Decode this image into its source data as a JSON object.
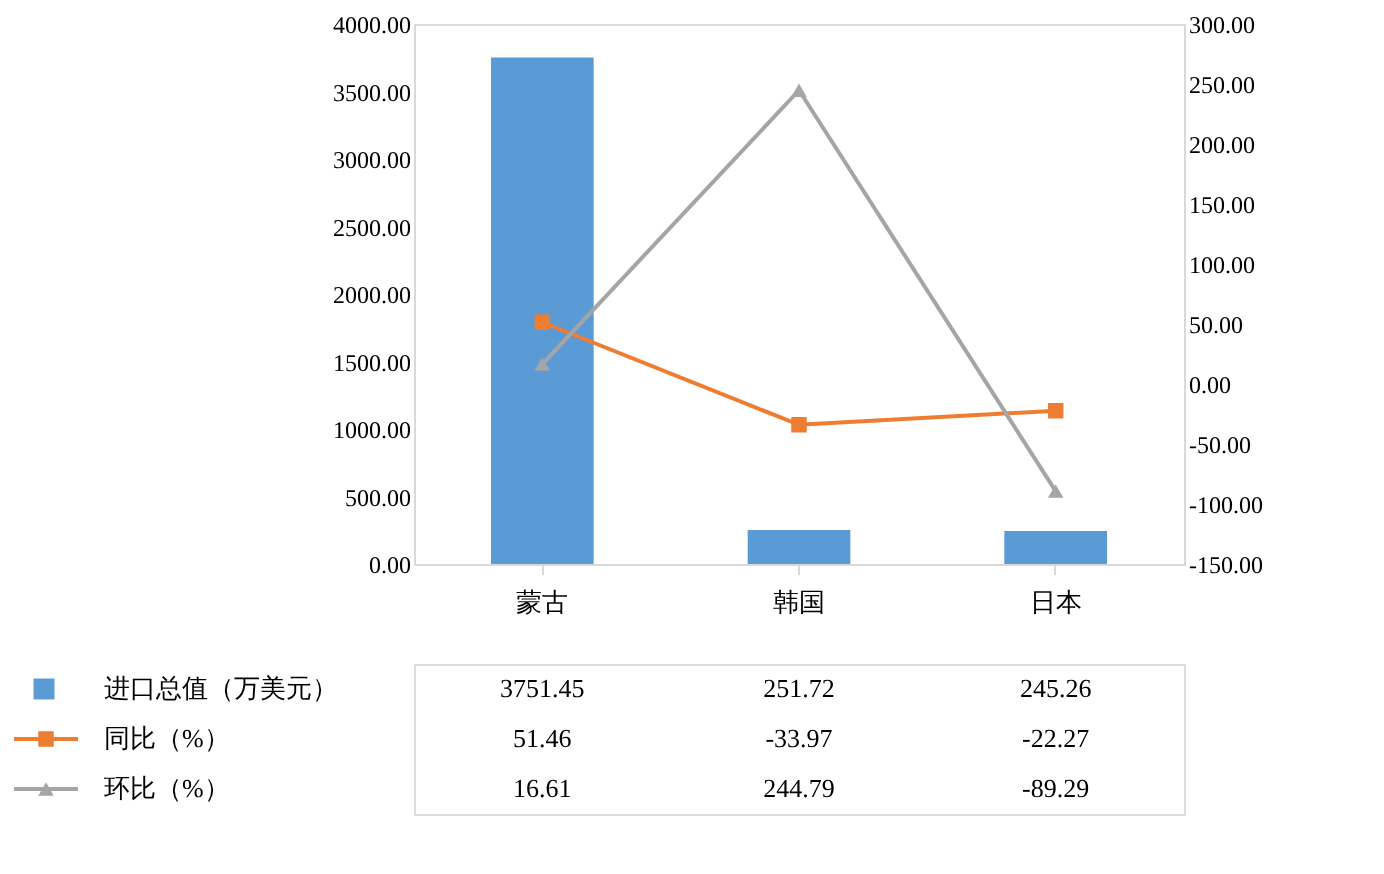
{
  "chart_data": {
    "type": "bar",
    "categories": [
      "蒙古",
      "韩国",
      "日本"
    ],
    "series": [
      {
        "name": "进口总值（万美元）",
        "color": "#5b9bd5",
        "values": [
          3751.45,
          251.72,
          245.26
        ]
      },
      {
        "name": "同比（%）",
        "type": "line",
        "axis": "y2",
        "marker": "square",
        "color": "#ed7d31",
        "values": [
          51.46,
          -33.97,
          -22.27
        ]
      },
      {
        "name": "环比（%）",
        "type": "line",
        "axis": "y2",
        "marker": "triangle",
        "color": "#a5a5a5",
        "values": [
          16.61,
          244.79,
          -89.29
        ]
      }
    ],
    "ylim": [
      0,
      4000
    ],
    "yticks": [
      {
        "value": 0,
        "label": "0.00"
      },
      {
        "value": 500,
        "label": "500.00"
      },
      {
        "value": 1000,
        "label": "1000.00"
      },
      {
        "value": 1500,
        "label": "1500.00"
      },
      {
        "value": 2000,
        "label": "2000.00"
      },
      {
        "value": 2500,
        "label": "2500.00"
      },
      {
        "value": 3000,
        "label": "3000.00"
      },
      {
        "value": 3500,
        "label": "3500.00"
      },
      {
        "value": 4000,
        "label": "4000.00"
      }
    ],
    "y2lim": [
      -150,
      300
    ],
    "y2ticks": [
      {
        "value": -150,
        "label": "-150.00"
      },
      {
        "value": -100,
        "label": "-100.00"
      },
      {
        "value": -50,
        "label": "-50.00"
      },
      {
        "value": 0,
        "label": "0.00"
      },
      {
        "value": 50,
        "label": "50.00"
      },
      {
        "value": 100,
        "label": "100.00"
      },
      {
        "value": 150,
        "label": "150.00"
      },
      {
        "value": 200,
        "label": "200.00"
      },
      {
        "value": 250,
        "label": "250.00"
      },
      {
        "value": 300,
        "label": "300.00"
      }
    ],
    "grid": false,
    "legend": "bottom",
    "data_labels": true
  }
}
